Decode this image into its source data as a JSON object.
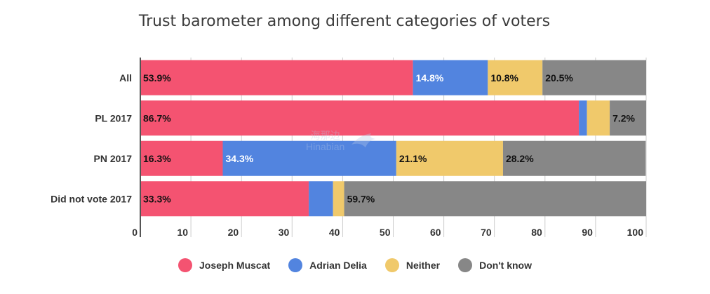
{
  "chart_data": {
    "type": "bar",
    "orientation": "horizontal",
    "stacked": true,
    "title": "Trust barometer among different categories of voters",
    "categories": [
      "All",
      "PL 2017",
      "PN 2017",
      "Did not vote 2017"
    ],
    "series": [
      {
        "name": "Joseph Muscat",
        "color": "#f45371",
        "values": [
          53.9,
          86.7,
          16.3,
          33.3
        ],
        "labels": [
          "53.9%",
          "86.7%",
          "16.3%",
          "33.3%"
        ]
      },
      {
        "name": "Adrian Delia",
        "color": "#5284df",
        "values": [
          14.8,
          1.6,
          34.3,
          4.8
        ],
        "labels": [
          "14.8%",
          "",
          "34.3%",
          ""
        ]
      },
      {
        "name": "Neither",
        "color": "#f0c96b",
        "values": [
          10.8,
          4.5,
          21.1,
          2.2
        ],
        "labels": [
          "10.8%",
          "",
          "21.1%",
          ""
        ]
      },
      {
        "name": "Don't know",
        "color": "#878787",
        "values": [
          20.5,
          7.2,
          28.2,
          59.7
        ],
        "labels": [
          "20.5%",
          "7.2%",
          "28.2%",
          "59.7%"
        ]
      }
    ],
    "xlim": [
      0,
      100
    ],
    "xticks": [
      "0",
      "10",
      "20",
      "30",
      "40",
      "50",
      "60",
      "70",
      "80",
      "90",
      "100"
    ],
    "grid": true,
    "legend_position": "bottom"
  },
  "watermark": {
    "text_cn": "海那边",
    "text_en": "Hinabian"
  }
}
